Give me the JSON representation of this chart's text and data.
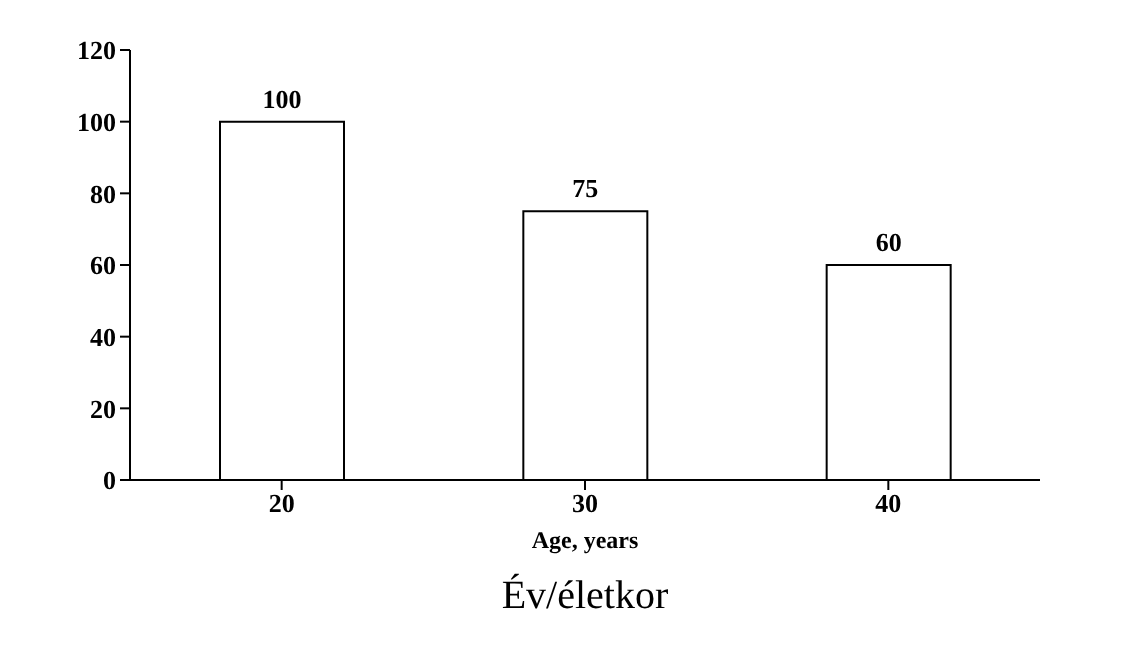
{
  "chart_data": {
    "type": "bar",
    "xlabel": "Age, years",
    "annotations": [
      "Év/életkor"
    ],
    "categories": [
      "20",
      "30",
      "40"
    ],
    "values": [
      100,
      75,
      60
    ],
    "color": "#ffffff",
    "ylim": [
      0,
      120
    ],
    "yticks": [
      0,
      20,
      40,
      60,
      80,
      100,
      120
    ],
    "data_labels": true,
    "grid": false,
    "legend": false
  }
}
